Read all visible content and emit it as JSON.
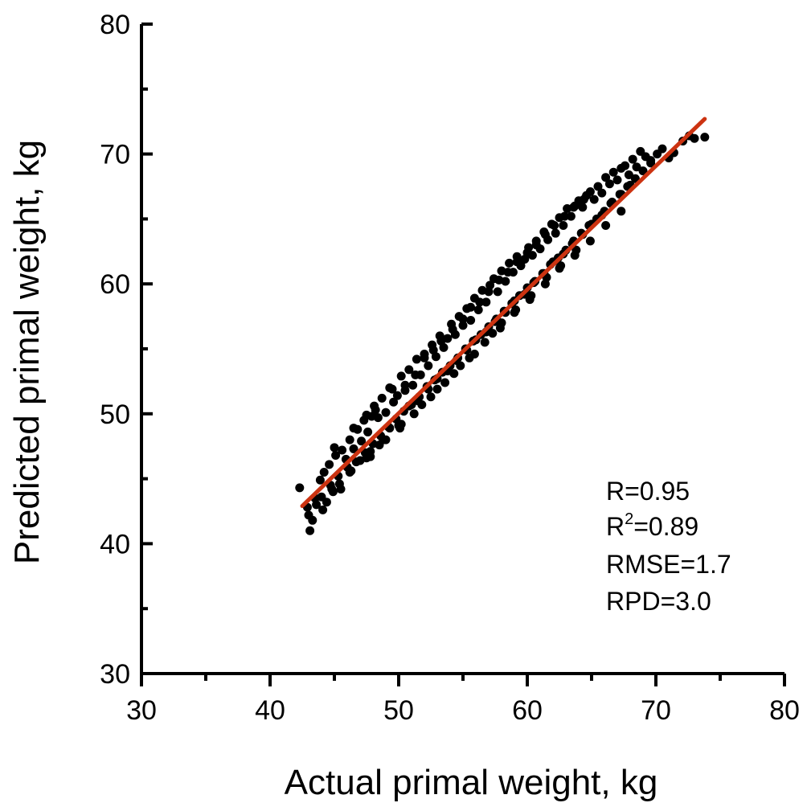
{
  "chart_data": {
    "type": "scatter",
    "title": "",
    "xlabel": "Actual primal weight, kg",
    "ylabel": "Predicted primal weight, kg",
    "xlim": [
      30,
      80
    ],
    "ylim": [
      30,
      80
    ],
    "major_ticks": [
      30,
      40,
      50,
      60,
      70,
      80
    ],
    "major_tick_labels": [
      "30",
      "40",
      "50",
      "60",
      "70",
      "80"
    ],
    "grid": false,
    "legend": "none",
    "colors": {
      "points": "#000000",
      "fit_line": "#cc3311",
      "axes": "#000000"
    },
    "fit_line": {
      "x": [
        42.5,
        73.8
      ],
      "y": [
        42.9,
        72.7
      ]
    },
    "stats": {
      "r_line": "R=0.95",
      "r2_prefix": "R",
      "r2_superscript": "2",
      "r2_suffix": "=0.89",
      "rmse_line": "RMSE=1.7",
      "rpd_line": "RPD=3.0"
    },
    "points": {
      "x": [
        42.3,
        42.9,
        43.1,
        43.5,
        43.9,
        44.2,
        44.4,
        44.6,
        44.9,
        45.1,
        45.3,
        45.6,
        45.9,
        46.2,
        46.5,
        46.8,
        47.1,
        47.3,
        47.6,
        47.9,
        48.1,
        48.4,
        48.7,
        49.0,
        49.3,
        49.6,
        49.9,
        50.2,
        50.5,
        50.8,
        51.1,
        51.4,
        51.7,
        52.0,
        52.3,
        52.6,
        52.9,
        53.2,
        53.5,
        53.8,
        54.1,
        54.4,
        54.7,
        55.0,
        55.3,
        55.6,
        55.9,
        56.2,
        56.5,
        56.8,
        57.1,
        57.4,
        57.7,
        58.0,
        58.3,
        58.6,
        58.9,
        59.2,
        59.5,
        59.8,
        60.1,
        60.4,
        60.7,
        61.0,
        61.3,
        61.6,
        61.9,
        62.2,
        62.5,
        62.8,
        63.1,
        63.4,
        63.7,
        64.0,
        64.3,
        64.6,
        64.9,
        65.2,
        65.5,
        65.8,
        66.1,
        66.4,
        66.7,
        67.0,
        67.3,
        67.6,
        67.9,
        68.2,
        68.5,
        68.8,
        69.2,
        69.6,
        70.1,
        70.5,
        71.0,
        71.4,
        72.1,
        72.6,
        73.0,
        73.8,
        43.0,
        43.6,
        44.1,
        44.8,
        45.4,
        46.0,
        46.7,
        47.4,
        48.0,
        48.6,
        49.2,
        49.8,
        50.4,
        51.0,
        51.6,
        52.2,
        52.8,
        53.4,
        54.0,
        54.6,
        55.2,
        55.8,
        56.4,
        57.0,
        57.6,
        58.2,
        58.8,
        59.4,
        60.0,
        60.6,
        61.2,
        61.8,
        62.4,
        63.0,
        63.6,
        64.2,
        64.8,
        65.4,
        66.0,
        66.6,
        67.2,
        67.8,
        68.4,
        69.0,
        69.6,
        43.3,
        44.0,
        44.7,
        45.5,
        46.3,
        47.0,
        47.8,
        48.5,
        49.3,
        50.0,
        50.8,
        51.5,
        52.3,
        53.0,
        53.8,
        54.5,
        55.3,
        56.0,
        56.8,
        57.5,
        58.3,
        59.0,
        59.8,
        60.5,
        61.3,
        62.0,
        62.8,
        63.5,
        64.3,
        65.0,
        65.8,
        66.5,
        67.3,
        68.0,
        45.0,
        46.5,
        47.5,
        48.2,
        49.5,
        50.5,
        51.3,
        52.0,
        52.7,
        53.3,
        54.2,
        55.0,
        55.6,
        56.3,
        57.0,
        57.8,
        58.5,
        59.2,
        60.0,
        60.7,
        61.4,
        62.1,
        62.9,
        63.6,
        64.4,
        47.8,
        48.8,
        50.1,
        51.2,
        52.5,
        53.6,
        54.8,
        55.9,
        57.3,
        58.0,
        59.1,
        60.3,
        61.5,
        62.6,
        63.8,
        46.2,
        47.5,
        49.0,
        50.2,
        51.8,
        53.0,
        54.3,
        55.5,
        56.7,
        57.9,
        59.0,
        60.2,
        61.4,
        62.5,
        63.7,
        64.9,
        66.1,
        67.3
      ],
      "y": [
        44.3,
        42.8,
        41.0,
        43.5,
        44.9,
        45.5,
        43.2,
        46.1,
        44.0,
        46.8,
        45.2,
        47.2,
        46.5,
        48.0,
        47.3,
        48.8,
        47.9,
        49.5,
        48.6,
        49.8,
        50.6,
        49.7,
        51.2,
        50.1,
        52.0,
        50.9,
        51.4,
        52.9,
        51.8,
        53.4,
        52.2,
        54.2,
        53.0,
        54.6,
        53.7,
        55.3,
        54.4,
        56.0,
        55.1,
        55.8,
        56.9,
        56.1,
        57.5,
        56.8,
        58.1,
        57.2,
        58.9,
        58.0,
        59.5,
        58.6,
        59.9,
        60.4,
        59.4,
        61.0,
        60.2,
        61.6,
        60.9,
        62.1,
        61.4,
        61.9,
        62.8,
        62.2,
        63.3,
        62.7,
        64.0,
        63.4,
        64.6,
        63.9,
        65.1,
        64.5,
        65.8,
        65.2,
        66.0,
        66.4,
        65.9,
        66.8,
        67.1,
        66.5,
        67.5,
        67.0,
        68.2,
        67.7,
        68.6,
        68.0,
        68.9,
        69.1,
        68.4,
        69.6,
        69.0,
        70.2,
        69.8,
        69.5,
        70.0,
        70.4,
        69.7,
        70.1,
        71.0,
        71.4,
        71.2,
        71.3,
        42.2,
        43.0,
        42.6,
        44.2,
        44.6,
        45.9,
        46.3,
        47.0,
        47.7,
        48.3,
        49.0,
        49.6,
        50.2,
        50.7,
        51.3,
        52.1,
        52.6,
        53.2,
        53.7,
        54.3,
        55.0,
        55.6,
        56.1,
        56.7,
        57.3,
        57.9,
        58.5,
        59.1,
        59.7,
        60.2,
        60.8,
        61.5,
        62.0,
        62.6,
        63.3,
        63.9,
        64.5,
        65.0,
        65.6,
        66.3,
        66.9,
        67.5,
        68.1,
        68.7,
        69.3,
        41.8,
        43.6,
        44.5,
        44.2,
        45.6,
        46.4,
        47.1,
        47.6,
        48.9,
        49.1,
        50.6,
        51.0,
        51.9,
        52.7,
        53.3,
        54.1,
        54.9,
        55.7,
        56.3,
        57.1,
        57.8,
        58.7,
        59.2,
        60.1,
        60.8,
        61.7,
        62.3,
        63.1,
        63.8,
        64.6,
        65.3,
        66.2,
        66.9,
        67.6,
        47.4,
        48.9,
        49.9,
        50.3,
        51.9,
        52.2,
        53.0,
        54.3,
        54.9,
        55.6,
        56.5,
        57.3,
        58.2,
        58.6,
        59.4,
        60.3,
        60.9,
        61.7,
        62.4,
        63.0,
        63.8,
        64.5,
        65.2,
        65.9,
        66.5,
        46.7,
        48.0,
        48.9,
        50.0,
        51.3,
        52.4,
        53.7,
        54.6,
        56.2,
        57.0,
        58.0,
        59.1,
        60.5,
        61.4,
        62.6,
        45.5,
        46.6,
        48.0,
        49.2,
        50.7,
        51.9,
        53.1,
        54.3,
        55.5,
        56.6,
        57.8,
        58.8,
        60.0,
        61.2,
        62.2,
        63.3,
        64.5,
        65.6
      ]
    }
  }
}
